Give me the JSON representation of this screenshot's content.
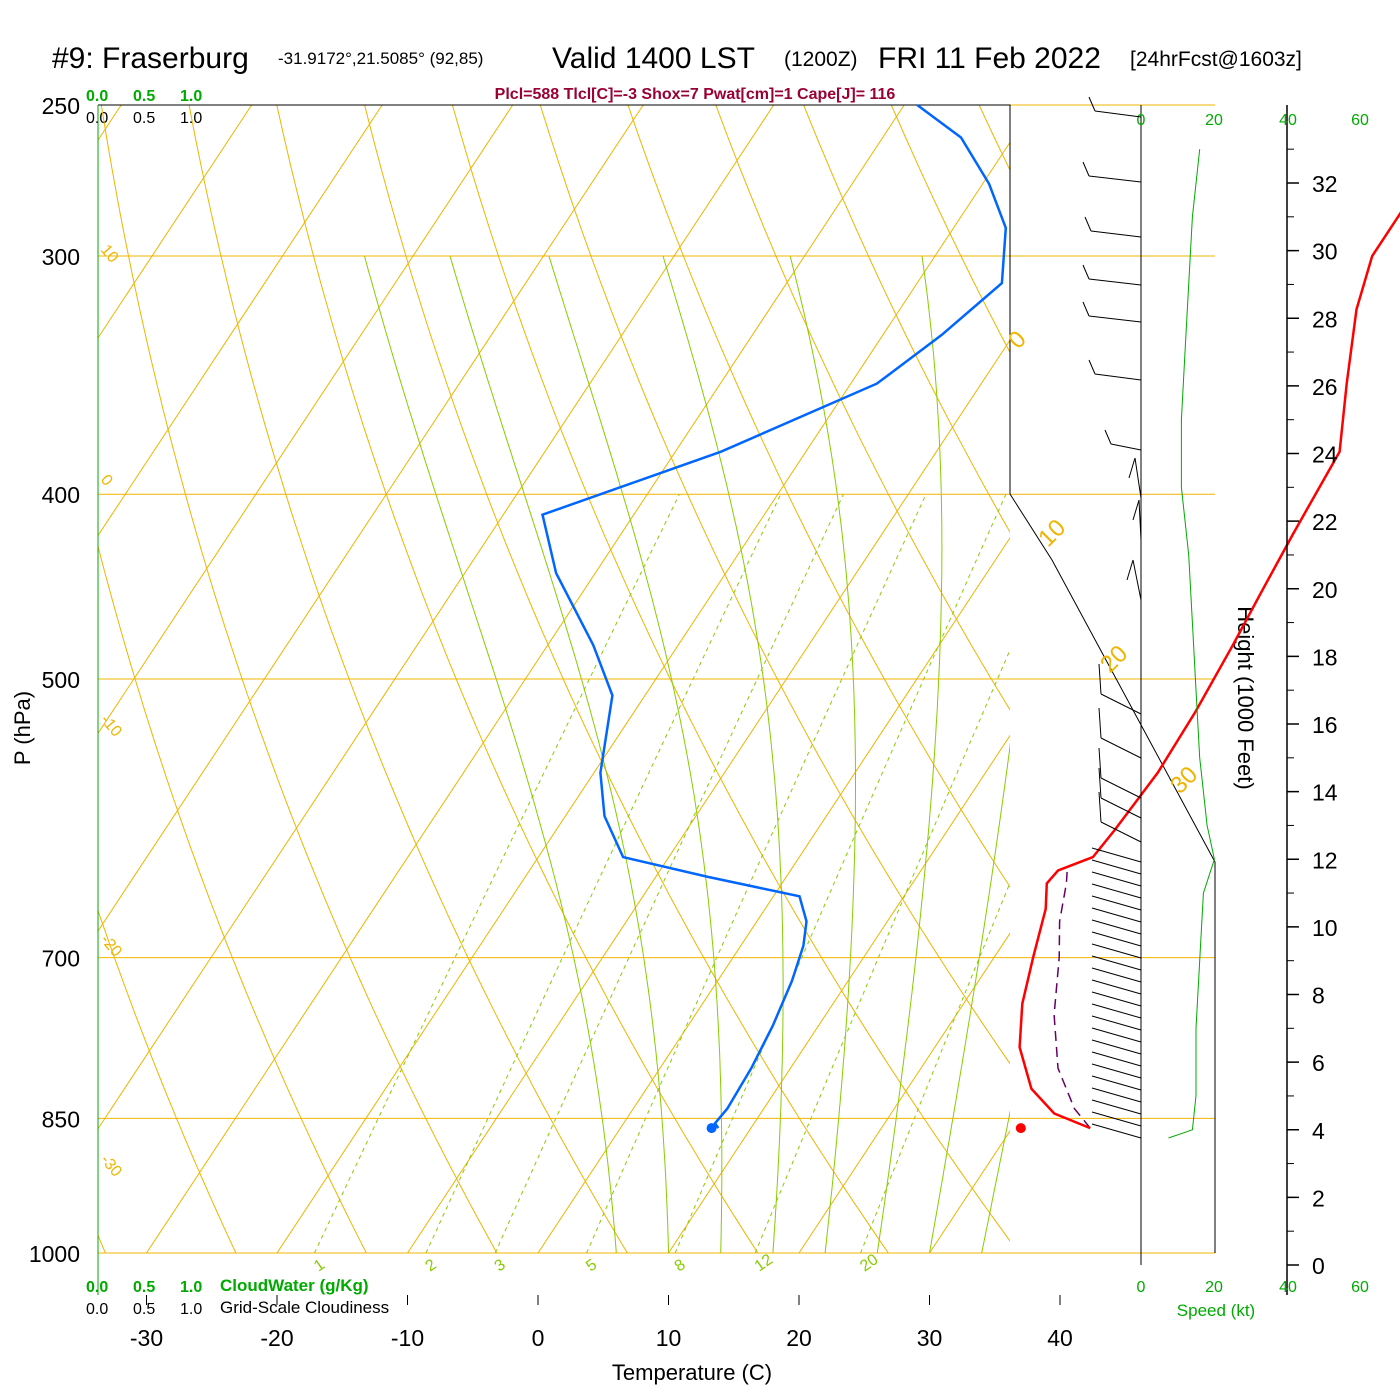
{
  "header": {
    "station": "#9: Fraserburg",
    "coords": "-31.9172°,21.5085° (92,85)",
    "valid": "Valid 1400 LST",
    "zulu": "(1200Z)",
    "date": "FRI 11 Feb 2022",
    "forecast": "[24hrFcst@1603z]",
    "indices": "Plcl=588 Tlcl[C]=-3 Shox=7 Pwat[cm]=1 Cape[J]= 116"
  },
  "colors": {
    "temperature": "#ff0000",
    "dewpoint": "#0066ff",
    "parcel": "#660066",
    "isotherm": "#f0b400",
    "dry_adiabat": "#f0b400",
    "moist_adiabat": "#88cc00",
    "mixing_ratio": "#88cc00",
    "cloud_scale": "#00aa00",
    "wind_profile": "#00aa00"
  },
  "cloud_scale": {
    "top_green": [
      "0.0",
      "0.5",
      "1.0"
    ],
    "top_black": [
      "0.0",
      "0.5",
      "1.0"
    ],
    "bottom_green": [
      "0.0",
      "0.5",
      "1.0"
    ],
    "bottom_black": [
      "0.0",
      "0.5",
      "1.0"
    ],
    "cloudwater_label": "CloudWater (g/Kg)",
    "cloudiness_label": "Grid-Scale Cloudiness"
  },
  "chart_data": {
    "type": "line",
    "title": "#9: Fraserburg",
    "xlabel": "Temperature (C)",
    "ylabel": "P (hPa)",
    "y2label": "Height (1000 Feet)",
    "x_ticks": [
      -30,
      -20,
      -10,
      0,
      10,
      20,
      30,
      40
    ],
    "pressure_ticks": [
      250,
      300,
      400,
      500,
      700,
      850,
      1000
    ],
    "height_ticks": [
      0,
      2,
      4,
      6,
      8,
      10,
      12,
      14,
      16,
      18,
      20,
      22,
      24,
      26,
      28,
      30,
      32
    ],
    "isotherm_labels": [
      {
        "label": "10",
        "t": 10
      },
      {
        "label": "0",
        "t": 0
      },
      {
        "label": "-10",
        "t": -10
      },
      {
        "label": "-20",
        "t": -20
      },
      {
        "label": "-30",
        "t": -30
      }
    ],
    "isotherm_right_labels": [
      {
        "label": "0",
        "t": 0
      },
      {
        "label": "10",
        "t": 10
      },
      {
        "label": "20",
        "t": 20
      },
      {
        "label": "30",
        "t": 30
      }
    ],
    "mixing_ratio_labels": [
      "1",
      "2",
      "3",
      "5",
      "8",
      "12",
      "20"
    ],
    "series": [
      {
        "name": "Temperature",
        "points": [
          {
            "p": 860,
            "t": 36.0
          },
          {
            "p": 845,
            "t": 32.5
          },
          {
            "p": 820,
            "t": 29.5
          },
          {
            "p": 780,
            "t": 26.5
          },
          {
            "p": 740,
            "t": 24.5
          },
          {
            "p": 700,
            "t": 23.0
          },
          {
            "p": 660,
            "t": 21.5
          },
          {
            "p": 640,
            "t": 20.3
          },
          {
            "p": 630,
            "t": 20.5
          },
          {
            "p": 620,
            "t": 22.5
          },
          {
            "p": 600,
            "t": 22.8
          },
          {
            "p": 560,
            "t": 23.2
          },
          {
            "p": 520,
            "t": 23.0
          },
          {
            "p": 480,
            "t": 22.5
          },
          {
            "p": 450,
            "t": 22.0
          },
          {
            "p": 420,
            "t": 21.5
          },
          {
            "p": 400,
            "t": 21.2
          },
          {
            "p": 380,
            "t": 20.9
          },
          {
            "p": 350,
            "t": 18.0
          },
          {
            "p": 320,
            "t": 15.0
          },
          {
            "p": 300,
            "t": 13.5
          },
          {
            "p": 280,
            "t": 13.5
          },
          {
            "p": 265,
            "t": 14.3
          },
          {
            "p": 250,
            "t": 16.0
          }
        ]
      },
      {
        "name": "Dewpoint",
        "points": [
          {
            "p": 860,
            "t": 7.5
          },
          {
            "p": 855,
            "t": 7.0
          },
          {
            "p": 840,
            "t": 7.2
          },
          {
            "p": 800,
            "t": 7.0
          },
          {
            "p": 760,
            "t": 6.5
          },
          {
            "p": 720,
            "t": 5.7
          },
          {
            "p": 690,
            "t": 4.8
          },
          {
            "p": 670,
            "t": 3.8
          },
          {
            "p": 650,
            "t": 2.0
          },
          {
            "p": 635,
            "t": -6.0
          },
          {
            "p": 620,
            "t": -13.5
          },
          {
            "p": 590,
            "t": -17.0
          },
          {
            "p": 560,
            "t": -19.5
          },
          {
            "p": 510,
            "t": -22.5
          },
          {
            "p": 480,
            "t": -26.5
          },
          {
            "p": 440,
            "t": -33.0
          },
          {
            "p": 410,
            "t": -37.0
          },
          {
            "p": 380,
            "t": -26.5
          },
          {
            "p": 350,
            "t": -18.0
          },
          {
            "p": 330,
            "t": -15.5
          },
          {
            "p": 310,
            "t": -13.5
          },
          {
            "p": 290,
            "t": -16.0
          },
          {
            "p": 275,
            "t": -19.5
          },
          {
            "p": 260,
            "t": -24.0
          },
          {
            "p": 250,
            "t": -29.0
          }
        ]
      },
      {
        "name": "Parcel",
        "points": [
          {
            "p": 860,
            "t": 36.0
          },
          {
            "p": 840,
            "t": 33.8
          },
          {
            "p": 800,
            "t": 30.5
          },
          {
            "p": 750,
            "t": 27.5
          },
          {
            "p": 700,
            "t": 25.0
          },
          {
            "p": 670,
            "t": 23.2
          },
          {
            "p": 640,
            "t": 21.8
          },
          {
            "p": 630,
            "t": 21.2
          }
        ]
      }
    ],
    "surface_markers": {
      "dewpoint": 13.3,
      "temperature": 37.0,
      "p": 860
    },
    "wind_profile_speed_kt": [
      {
        "h": 4,
        "s": 14
      },
      {
        "h": 5,
        "s": 15
      },
      {
        "h": 7,
        "s": 15
      },
      {
        "h": 9,
        "s": 16
      },
      {
        "h": 11,
        "s": 17
      },
      {
        "h": 12,
        "s": 20
      },
      {
        "h": 13,
        "s": 18
      },
      {
        "h": 15,
        "s": 16
      },
      {
        "h": 17,
        "s": 15
      },
      {
        "h": 19,
        "s": 14
      },
      {
        "h": 21,
        "s": 13
      },
      {
        "h": 23,
        "s": 11
      },
      {
        "h": 25,
        "s": 11
      },
      {
        "h": 27,
        "s": 12
      },
      {
        "h": 29,
        "s": 13
      },
      {
        "h": 31,
        "s": 14
      },
      {
        "h": 33,
        "s": 16
      }
    ],
    "speed_axis_top": [
      "0",
      "20",
      "40",
      "60"
    ],
    "speed_axis_bottom": [
      "0",
      "20",
      "40",
      "60"
    ],
    "speed_label": "Speed (kt)"
  }
}
